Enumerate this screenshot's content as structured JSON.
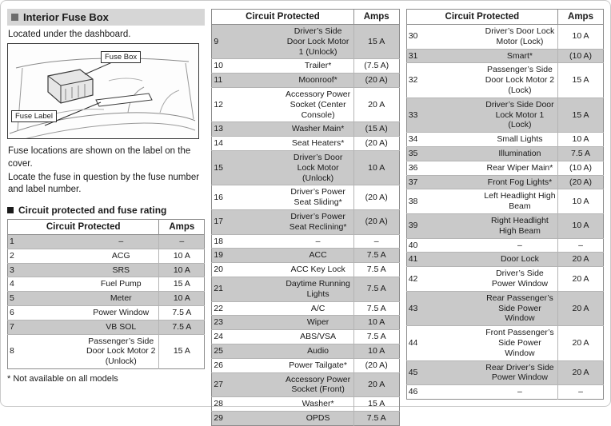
{
  "left_panel": {
    "section_title": "Interior Fuse Box",
    "intro": "Located under the dashboard.",
    "diagram": {
      "callout_fuse_box": "Fuse Box",
      "callout_fuse_label": "Fuse Label"
    },
    "note1": "Fuse locations are shown on the label on the cover.",
    "note2": "Locate the fuse in question by the fuse number and label number.",
    "table_section_title": "Circuit protected and fuse rating",
    "footnote": "* Not available on all models"
  },
  "tables": {
    "headers": {
      "circuit": "Circuit Protected",
      "amps": "Amps"
    },
    "columns": {
      "left": [
        {
          "num": "1",
          "circuit": "–",
          "amps": "–"
        },
        {
          "num": "2",
          "circuit": "ACG",
          "amps": "10 A"
        },
        {
          "num": "3",
          "circuit": "SRS",
          "amps": "10 A"
        },
        {
          "num": "4",
          "circuit": "Fuel Pump",
          "amps": "15 A"
        },
        {
          "num": "5",
          "circuit": "Meter",
          "amps": "10 A"
        },
        {
          "num": "6",
          "circuit": "Power Window",
          "amps": "7.5 A"
        },
        {
          "num": "7",
          "circuit": "VB SOL",
          "amps": "7.5 A"
        },
        {
          "num": "8",
          "circuit": "Passenger’s Side Door Lock Motor 2 (Unlock)",
          "amps": "15 A"
        }
      ],
      "middle": [
        {
          "num": "9",
          "circuit": "Driver’s Side Door Lock Motor 1 (Unlock)",
          "amps": "15 A"
        },
        {
          "num": "10",
          "circuit": "Trailer*",
          "amps": "(7.5 A)"
        },
        {
          "num": "11",
          "circuit": "Moonroof*",
          "amps": "(20 A)"
        },
        {
          "num": "12",
          "circuit": "Accessory Power Socket (Center Console)",
          "amps": "20 A"
        },
        {
          "num": "13",
          "circuit": "Washer Main*",
          "amps": "(15 A)"
        },
        {
          "num": "14",
          "circuit": "Seat Heaters*",
          "amps": "(20 A)"
        },
        {
          "num": "15",
          "circuit": "Driver’s Door Lock Motor (Unlock)",
          "amps": "10 A"
        },
        {
          "num": "16",
          "circuit": "Driver’s Power Seat Sliding*",
          "amps": "(20 A)"
        },
        {
          "num": "17",
          "circuit": "Driver’s Power Seat Reclining*",
          "amps": "(20 A)"
        },
        {
          "num": "18",
          "circuit": "–",
          "amps": "–"
        },
        {
          "num": "19",
          "circuit": "ACC",
          "amps": "7.5 A"
        },
        {
          "num": "20",
          "circuit": "ACC Key Lock",
          "amps": "7.5 A"
        },
        {
          "num": "21",
          "circuit": "Daytime Running Lights",
          "amps": "7.5 A"
        },
        {
          "num": "22",
          "circuit": "A/C",
          "amps": "7.5 A"
        },
        {
          "num": "23",
          "circuit": "Wiper",
          "amps": "10 A"
        },
        {
          "num": "24",
          "circuit": "ABS/VSA",
          "amps": "7.5 A"
        },
        {
          "num": "25",
          "circuit": "Audio",
          "amps": "10 A"
        },
        {
          "num": "26",
          "circuit": "Power Tailgate*",
          "amps": "(20 A)"
        },
        {
          "num": "27",
          "circuit": "Accessory Power Socket (Front)",
          "amps": "20 A"
        },
        {
          "num": "28",
          "circuit": "Washer*",
          "amps": "15 A"
        },
        {
          "num": "29",
          "circuit": "OPDS",
          "amps": "7.5 A"
        }
      ],
      "right": [
        {
          "num": "30",
          "circuit": "Driver’s Door Lock Motor (Lock)",
          "amps": "10 A"
        },
        {
          "num": "31",
          "circuit": "Smart*",
          "amps": "(10 A)"
        },
        {
          "num": "32",
          "circuit": "Passenger’s Side Door Lock Motor 2 (Lock)",
          "amps": "15 A"
        },
        {
          "num": "33",
          "circuit": "Driver’s Side Door Lock Motor 1 (Lock)",
          "amps": "15 A"
        },
        {
          "num": "34",
          "circuit": "Small Lights",
          "amps": "10 A"
        },
        {
          "num": "35",
          "circuit": "Illumination",
          "amps": "7.5 A"
        },
        {
          "num": "36",
          "circuit": "Rear Wiper Main*",
          "amps": "(10 A)"
        },
        {
          "num": "37",
          "circuit": "Front Fog Lights*",
          "amps": "(20 A)"
        },
        {
          "num": "38",
          "circuit": "Left Headlight High Beam",
          "amps": "10 A"
        },
        {
          "num": "39",
          "circuit": "Right Headlight High Beam",
          "amps": "10 A"
        },
        {
          "num": "40",
          "circuit": "–",
          "amps": "–"
        },
        {
          "num": "41",
          "circuit": "Door Lock",
          "amps": "20 A"
        },
        {
          "num": "42",
          "circuit": "Driver’s Side Power Window",
          "amps": "20 A"
        },
        {
          "num": "43",
          "circuit": "Rear Passenger’s Side Power Window",
          "amps": "20 A"
        },
        {
          "num": "44",
          "circuit": "Front Passenger’s Side Power Window",
          "amps": "20 A"
        },
        {
          "num": "45",
          "circuit": "Rear Driver’s Side Power Window",
          "amps": "20 A"
        },
        {
          "num": "46",
          "circuit": "–",
          "amps": "–"
        }
      ]
    }
  }
}
